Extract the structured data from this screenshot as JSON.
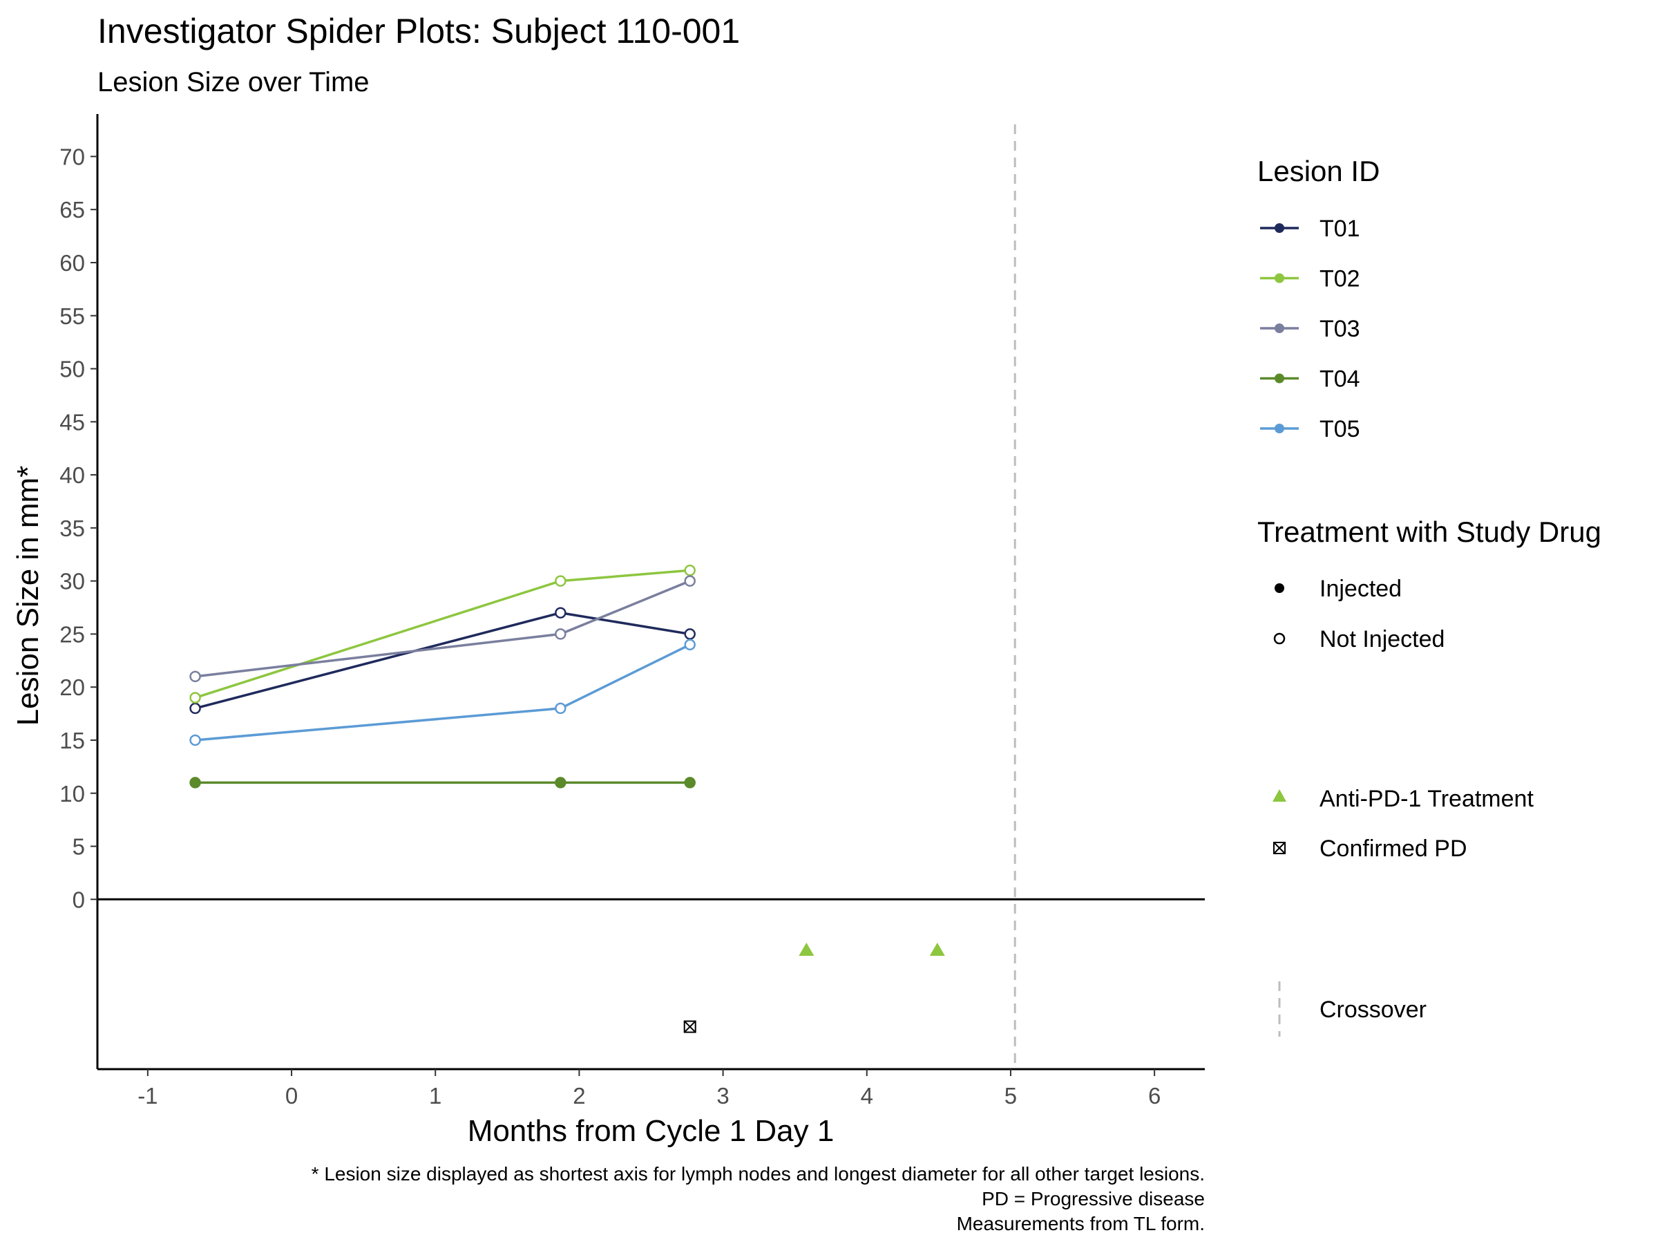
{
  "chart_data": {
    "type": "line",
    "title": "Investigator Spider Plots: Subject 110-001",
    "subtitle": "Lesion Size over Time",
    "xlabel": "Months from Cycle 1 Day 1",
    "ylabel": "Lesion Size in mm*",
    "xlim": [
      -1.35,
      6.35
    ],
    "ylim": [
      -16,
      74
    ],
    "x_ticks": [
      -1,
      0,
      1,
      2,
      3,
      4,
      5,
      6
    ],
    "y_ticks": [
      0,
      5,
      10,
      15,
      20,
      25,
      30,
      35,
      40,
      45,
      50,
      55,
      60,
      65,
      70
    ],
    "grid": false,
    "x": [
      -0.67,
      1.87,
      2.77
    ],
    "series": [
      {
        "name": "T01",
        "color": "#1f2a5c",
        "values": [
          18,
          27,
          25
        ],
        "injected": [
          false,
          false,
          false
        ]
      },
      {
        "name": "T02",
        "color": "#8dc63f",
        "values": [
          19,
          30,
          31
        ],
        "injected": [
          false,
          false,
          false
        ]
      },
      {
        "name": "T03",
        "color": "#7a7f9e",
        "values": [
          21,
          25,
          30
        ],
        "injected": [
          false,
          false,
          false
        ]
      },
      {
        "name": "T04",
        "color": "#5b8a2a",
        "values": [
          11,
          11,
          11
        ],
        "injected": [
          true,
          true,
          true
        ]
      },
      {
        "name": "T05",
        "color": "#5b9bd5",
        "values": [
          15,
          18,
          24
        ],
        "injected": [
          false,
          false,
          false
        ]
      }
    ],
    "anti_pd1_treatment": {
      "label": "Anti-PD-1 Treatment",
      "color": "#8dc63f",
      "x": [
        3.58,
        4.49
      ],
      "y": -4.8
    },
    "confirmed_pd": {
      "label": "Confirmed PD",
      "x": [
        2.77
      ],
      "y": -12
    },
    "crossover": {
      "label": "Crossover",
      "x": 5.03,
      "color": "#bdbdbd"
    },
    "legend": {
      "placement": "right",
      "lesion_title": "Lesion ID",
      "treatment_title": "Treatment with Study Drug",
      "injected_label": "Injected",
      "not_injected_label": "Not Injected"
    },
    "caption": [
      "* Lesion size displayed as shortest axis for lymph nodes and longest diameter for all other target lesions.",
      "PD = Progressive disease",
      "Measurements from TL form."
    ]
  }
}
